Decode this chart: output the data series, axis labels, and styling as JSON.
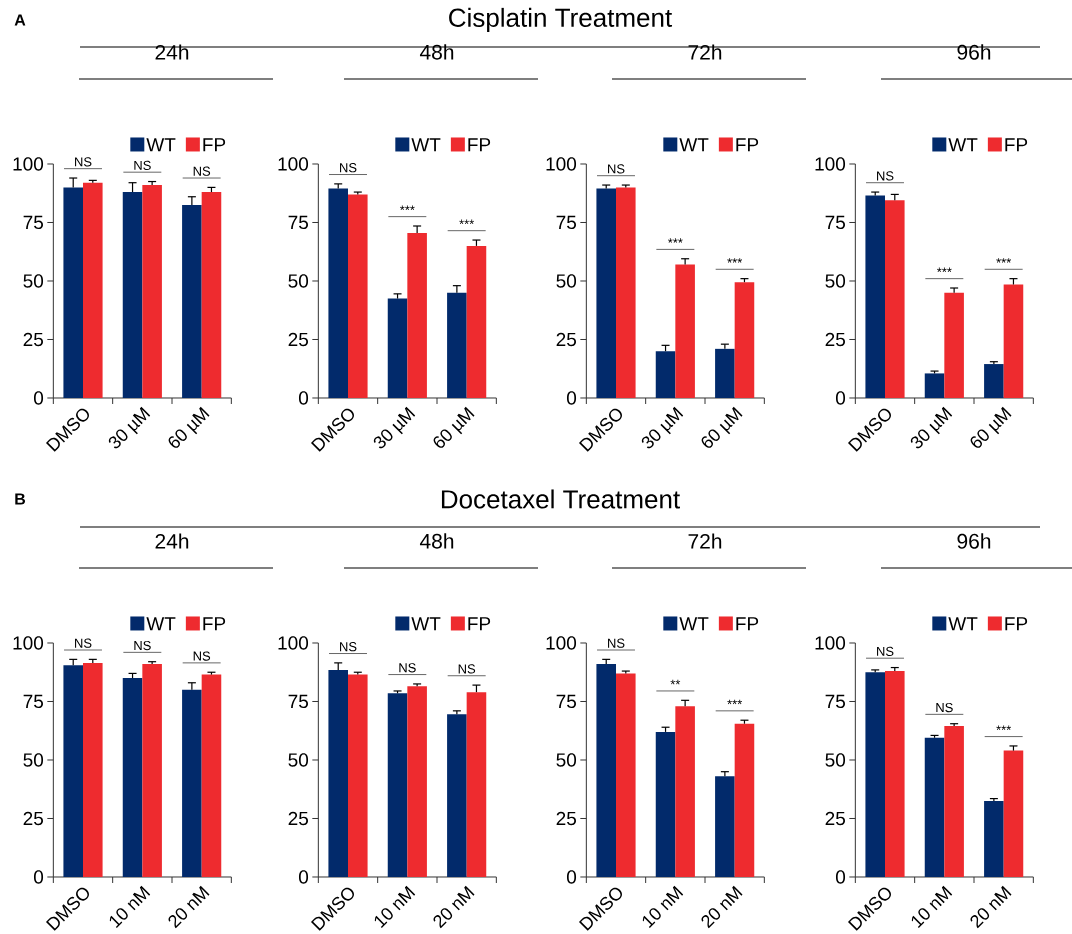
{
  "chart_data": [
    {
      "type": "bar",
      "title": "24h",
      "categories": [
        "DMSO",
        "30 µM",
        "60 µM"
      ],
      "ylim": [
        0,
        100
      ],
      "yticks": [
        0,
        25,
        50,
        75,
        100
      ],
      "legend": "top right",
      "series": [
        {
          "name": "WT",
          "color": "#022a6b",
          "values": [
            90,
            88,
            82.5
          ],
          "errors": [
            4,
            4,
            3.5
          ]
        },
        {
          "name": "FP",
          "color": "#ee2b2f",
          "values": [
            92,
            91,
            88
          ],
          "errors": [
            1,
            1.5,
            2
          ]
        }
      ],
      "annotations": [
        "A",
        "Cisplatin Treatment",
        "NS",
        "NS",
        "NS"
      ]
    },
    {
      "type": "bar",
      "title": "48h",
      "categories": [
        "DMSO",
        "30 µM",
        "60 µM"
      ],
      "ylim": [
        0,
        100
      ],
      "yticks": [
        0,
        25,
        50,
        75,
        100
      ],
      "legend": "top right",
      "series": [
        {
          "name": "WT",
          "color": "#022a6b",
          "values": [
            89.5,
            42.5,
            45
          ],
          "errors": [
            2,
            2,
            3
          ]
        },
        {
          "name": "FP",
          "color": "#ee2b2f",
          "values": [
            87,
            70.5,
            65
          ],
          "errors": [
            1,
            3,
            2.5
          ]
        }
      ],
      "annotations": [
        "NS",
        "***",
        "***"
      ]
    },
    {
      "type": "bar",
      "title": "72h",
      "categories": [
        "DMSO",
        "30 µM",
        "60 µM"
      ],
      "ylim": [
        0,
        100
      ],
      "yticks": [
        0,
        25,
        50,
        75,
        100
      ],
      "legend": "top right",
      "series": [
        {
          "name": "WT",
          "color": "#022a6b",
          "values": [
            89.5,
            20,
            21
          ],
          "errors": [
            1.5,
            2.5,
            2
          ]
        },
        {
          "name": "FP",
          "color": "#ee2b2f",
          "values": [
            90,
            57,
            49.5
          ],
          "errors": [
            1,
            2.5,
            1.5
          ]
        }
      ],
      "annotations": [
        "NS",
        "***",
        "***"
      ]
    },
    {
      "type": "bar",
      "title": "96h",
      "categories": [
        "DMSO",
        "30 µM",
        "60 µM"
      ],
      "ylim": [
        0,
        100
      ],
      "yticks": [
        0,
        25,
        50,
        75,
        100
      ],
      "legend": "top right",
      "series": [
        {
          "name": "WT",
          "color": "#022a6b",
          "values": [
            86.5,
            10.5,
            14.5
          ],
          "errors": [
            1.5,
            1,
            1
          ]
        },
        {
          "name": "FP",
          "color": "#ee2b2f",
          "values": [
            84.5,
            45,
            48.5
          ],
          "errors": [
            2.5,
            2,
            2.5
          ]
        }
      ],
      "annotations": [
        "NS",
        "***",
        "***"
      ]
    },
    {
      "type": "bar",
      "title": "24h",
      "categories": [
        "DMSO",
        "10 nM",
        "20 nM"
      ],
      "ylim": [
        0,
        100
      ],
      "yticks": [
        0,
        25,
        50,
        75,
        100
      ],
      "legend": "top right",
      "series": [
        {
          "name": "WT",
          "color": "#022a6b",
          "values": [
            90.5,
            85,
            80
          ],
          "errors": [
            2.5,
            2,
            3
          ]
        },
        {
          "name": "FP",
          "color": "#ee2b2f",
          "values": [
            91.5,
            91,
            86.5
          ],
          "errors": [
            1.5,
            1,
            1
          ]
        }
      ],
      "annotations": [
        "B",
        "Docetaxel Treatment",
        "NS",
        "NS",
        "NS"
      ]
    },
    {
      "type": "bar",
      "title": "48h",
      "categories": [
        "DMSO",
        "10 nM",
        "20 nM"
      ],
      "ylim": [
        0,
        100
      ],
      "yticks": [
        0,
        25,
        50,
        75,
        100
      ],
      "legend": "top right",
      "series": [
        {
          "name": "WT",
          "color": "#022a6b",
          "values": [
            88.5,
            78.5,
            69.5
          ],
          "errors": [
            3,
            1,
            1.5
          ]
        },
        {
          "name": "FP",
          "color": "#ee2b2f",
          "values": [
            86.5,
            81.5,
            79
          ],
          "errors": [
            1,
            1,
            3
          ]
        }
      ],
      "annotations": [
        "NS",
        "NS",
        "NS"
      ]
    },
    {
      "type": "bar",
      "title": "72h",
      "categories": [
        "DMSO",
        "10 nM",
        "20 nM"
      ],
      "ylim": [
        0,
        100
      ],
      "yticks": [
        0,
        25,
        50,
        75,
        100
      ],
      "legend": "top right",
      "series": [
        {
          "name": "WT",
          "color": "#022a6b",
          "values": [
            91,
            62,
            43
          ],
          "errors": [
            2,
            2,
            2
          ]
        },
        {
          "name": "FP",
          "color": "#ee2b2f",
          "values": [
            87,
            73,
            65.5
          ],
          "errors": [
            1,
            2.5,
            1.5
          ]
        }
      ],
      "annotations": [
        "NS",
        "**",
        "***"
      ]
    },
    {
      "type": "bar",
      "title": "96h",
      "categories": [
        "DMSO",
        "10 nM",
        "20 nM"
      ],
      "ylim": [
        0,
        100
      ],
      "yticks": [
        0,
        25,
        50,
        75,
        100
      ],
      "legend": "top right",
      "series": [
        {
          "name": "WT",
          "color": "#022a6b",
          "values": [
            87.5,
            59.5,
            32.5
          ],
          "errors": [
            1,
            1,
            1
          ]
        },
        {
          "name": "FP",
          "color": "#ee2b2f",
          "values": [
            88,
            64.5,
            54
          ],
          "errors": [
            1.5,
            1,
            2
          ]
        }
      ],
      "annotations": [
        "NS",
        "NS",
        "***"
      ]
    }
  ]
}
